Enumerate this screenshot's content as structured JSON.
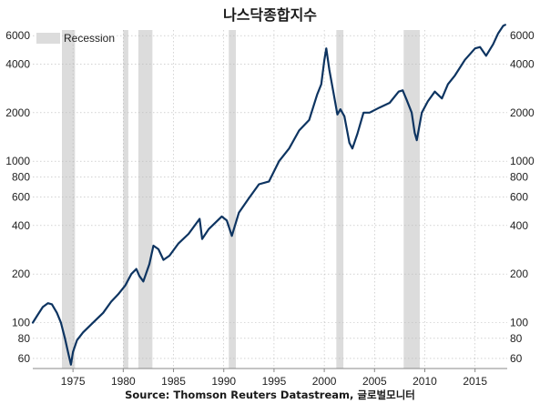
{
  "chart_data": {
    "type": "line",
    "title": "나스닥종합지수",
    "source": "Source: Thomson Reuters Datastream, 글로벌모니터",
    "xlim": [
      1971,
      2018.2
    ],
    "ylim": [
      52,
      6500
    ],
    "yscale": "log",
    "x_ticks": [
      1975,
      1980,
      1985,
      1990,
      1995,
      2000,
      2005,
      2010,
      2015
    ],
    "y_ticks": [
      60,
      80,
      100,
      200,
      400,
      600,
      800,
      1000,
      2000,
      4000,
      6000
    ],
    "grid": true,
    "legend": {
      "placement": "top-left",
      "entries": [
        "Recession"
      ]
    },
    "colors": {
      "line": "#0d3461",
      "recession": "#dcdcdc",
      "grid": "#b8b8b8"
    },
    "recessions": [
      {
        "start": 1973.9,
        "end": 1975.2
      },
      {
        "start": 1980.0,
        "end": 1980.5
      },
      {
        "start": 1981.5,
        "end": 1982.9
      },
      {
        "start": 1990.5,
        "end": 1991.2
      },
      {
        "start": 2001.2,
        "end": 2001.9
      },
      {
        "start": 2007.9,
        "end": 2009.5
      }
    ],
    "series": [
      {
        "x": [
          1971.0,
          1971.5,
          1972.0,
          1972.5,
          1972.9,
          1973.4,
          1973.8,
          1974.2,
          1974.6,
          1974.8,
          1975.0,
          1975.4,
          1976.0,
          1977.0,
          1978.0,
          1978.8,
          1979.5,
          1980.2,
          1980.8,
          1981.3,
          1981.6,
          1982.0,
          1982.6,
          1983.0,
          1983.5,
          1984.0,
          1984.6,
          1985.5,
          1986.5,
          1987.6,
          1987.85,
          1988.5,
          1989.8,
          1990.3,
          1990.8,
          1991.5,
          1992.5,
          1993.5,
          1994.5,
          1995.5,
          1996.5,
          1997.5,
          1998.5,
          1999.3,
          1999.7,
          2000.0,
          2000.2,
          2000.5,
          2000.9,
          2001.3,
          2001.6,
          2002.0,
          2002.5,
          2002.8,
          2003.3,
          2003.9,
          2004.5,
          2005.5,
          2006.5,
          2007.4,
          2007.8,
          2008.2,
          2008.7,
          2009.0,
          2009.2,
          2009.7,
          2010.3,
          2011.0,
          2011.7,
          2012.3,
          2013.0,
          2014.0,
          2015.0,
          2015.5,
          2016.1,
          2016.8,
          2017.3,
          2017.8,
          2018.0
        ],
        "y": [
          100,
          112,
          125,
          132,
          130,
          115,
          100,
          80,
          62,
          55,
          66,
          78,
          87,
          100,
          115,
          135,
          150,
          170,
          200,
          215,
          195,
          180,
          230,
          300,
          285,
          245,
          260,
          310,
          355,
          440,
          330,
          380,
          455,
          430,
          345,
          480,
          590,
          720,
          750,
          1000,
          1200,
          1550,
          1800,
          2600,
          3000,
          4200,
          5000,
          3700,
          2700,
          1950,
          2100,
          1900,
          1300,
          1200,
          1480,
          2000,
          2000,
          2150,
          2300,
          2700,
          2750,
          2400,
          2000,
          1500,
          1350,
          2000,
          2350,
          2700,
          2450,
          3000,
          3400,
          4250,
          5000,
          5100,
          4500,
          5300,
          6200,
          6900,
          7000
        ]
      }
    ]
  }
}
